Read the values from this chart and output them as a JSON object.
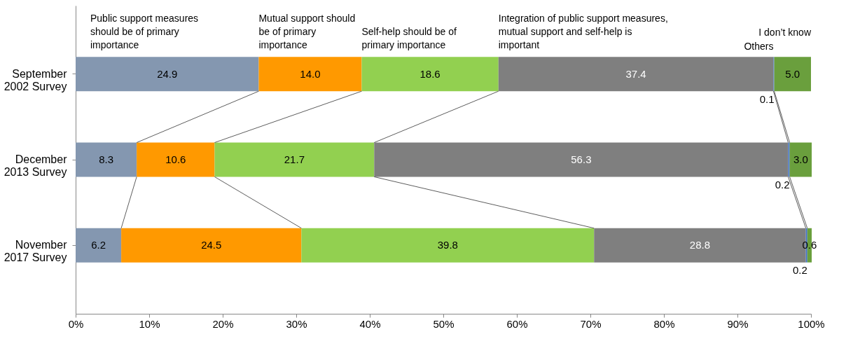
{
  "chart_data": {
    "type": "bar",
    "orientation": "horizontal",
    "stacked": true,
    "grid": false,
    "categories": [
      "September 2002 Survey",
      "December 2013 Survey",
      "November 2017 Survey"
    ],
    "series": [
      {
        "name": "Public support measures should be of primary importance",
        "color": "#8497b0",
        "values": [
          24.9,
          8.3,
          6.2
        ],
        "value_labels": [
          "24.9",
          "8.3",
          "6.2"
        ]
      },
      {
        "name": "Mutual support should be of primary importance",
        "color": "#ff9900",
        "values": [
          14.0,
          10.6,
          24.5
        ],
        "value_labels": [
          "14.0",
          "10.6",
          "24.5"
        ]
      },
      {
        "name": "Self-help should be of primary importance",
        "color": "#92d050",
        "values": [
          18.6,
          21.7,
          39.8
        ],
        "value_labels": [
          "18.6",
          "21.7",
          "39.8"
        ]
      },
      {
        "name": "Integration of public support measures, mutual support and self-help is important",
        "color": "#7f7f7f",
        "values": [
          37.4,
          56.3,
          28.8
        ],
        "value_labels": [
          "37.4",
          "56.3",
          "28.8"
        ]
      },
      {
        "name": "Others",
        "color": "#4472c4",
        "values": [
          0.1,
          0.2,
          0.2
        ],
        "value_labels": [
          "0.1",
          "0.2",
          "0.2"
        ]
      },
      {
        "name": "I don’t know",
        "color": "#6a9f3d",
        "values": [
          5.0,
          3.0,
          0.6
        ],
        "value_labels": [
          "5.0",
          "3.0",
          "0.6"
        ]
      }
    ],
    "xlim": [
      0,
      100
    ],
    "xticks": [
      {
        "value": 0,
        "label": "0%"
      },
      {
        "value": 10,
        "label": "10%"
      },
      {
        "value": 20,
        "label": "20%"
      },
      {
        "value": 30,
        "label": "30%"
      },
      {
        "value": 40,
        "label": "40%"
      },
      {
        "value": 50,
        "label": "50%"
      },
      {
        "value": 60,
        "label": "60%"
      },
      {
        "value": 70,
        "label": "70%"
      },
      {
        "value": 80,
        "label": "80%"
      },
      {
        "value": 90,
        "label": "90%"
      },
      {
        "value": 100,
        "label": "100%"
      }
    ]
  }
}
